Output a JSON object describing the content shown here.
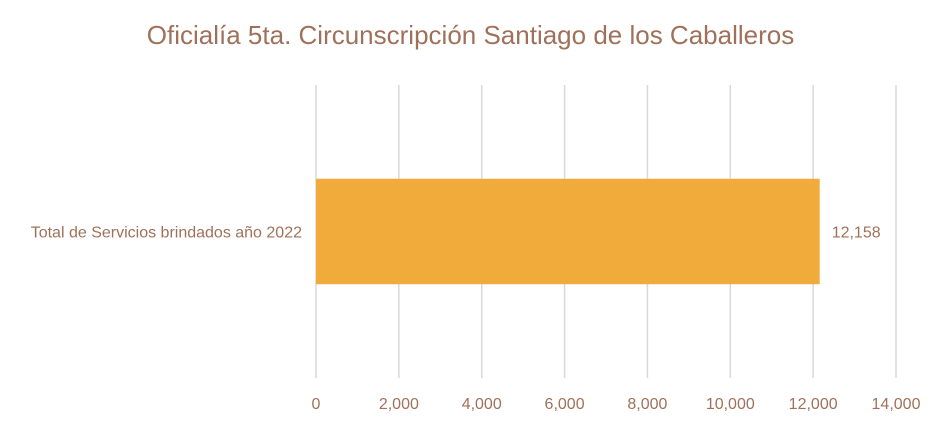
{
  "chart_data": {
    "type": "bar",
    "orientation": "horizontal",
    "title": "Oficialía 5ta. Circunscripción Santiago de los Caballeros",
    "categories": [
      "Total de Servicios brindados año 2022"
    ],
    "values": [
      12158
    ],
    "data_labels": [
      "12,158"
    ],
    "xlim": [
      0,
      14000
    ],
    "x_ticks": [
      0,
      2000,
      4000,
      6000,
      8000,
      10000,
      12000,
      14000
    ],
    "x_tick_labels": [
      "0",
      "2,000",
      "4,000",
      "6,000",
      "8,000",
      "10,000",
      "12,000",
      "14,000"
    ],
    "grid": true,
    "legend": "none",
    "colors": {
      "bar": "#f0ab3a",
      "grid": "#d9d9d9",
      "text": "#a0715a"
    }
  }
}
